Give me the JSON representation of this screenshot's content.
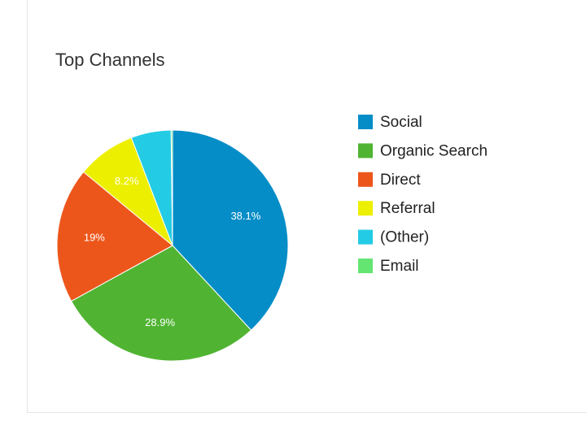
{
  "chart_data": {
    "type": "pie",
    "title": "Top Channels",
    "categories": [
      "Social",
      "Organic Search",
      "Direct",
      "Referral",
      "(Other)",
      "Email"
    ],
    "values": [
      38.1,
      28.9,
      19,
      8.2,
      5.6,
      0.2
    ],
    "value_labels": [
      "38.1%",
      "28.9%",
      "19%",
      "8.2%",
      null,
      null
    ],
    "colors": [
      "#058dc7",
      "#50b432",
      "#ed561b",
      "#edef00",
      "#24cbe5",
      "#64e572"
    ]
  }
}
